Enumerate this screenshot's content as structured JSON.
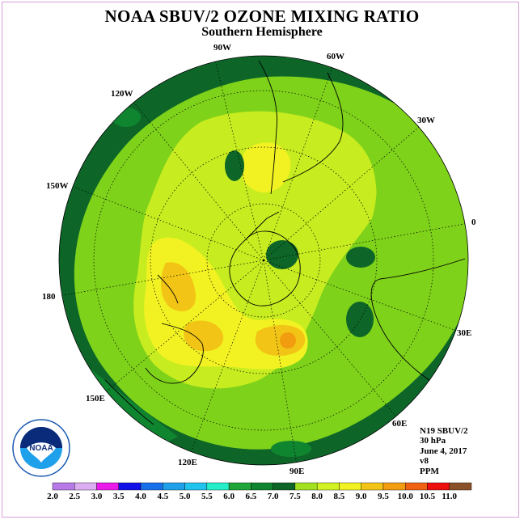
{
  "title": "NOAA SBUV/2 OZONE MIXING RATIO",
  "subtitle": "Southern Hemisphere",
  "longitude_labels": [
    "90W",
    "60W",
    "30W",
    "0",
    "30E",
    "60E",
    "90E",
    "120E",
    "150E",
    "180",
    "150W",
    "120W"
  ],
  "info": {
    "satellite": "N19 SBUV/2",
    "level": "30 hPa",
    "date": "June 4, 2017",
    "version": "v8",
    "units": "PPM"
  },
  "logo_text": "NOAA",
  "colorbar": {
    "labels": [
      "2.0",
      "2.5",
      "3.0",
      "3.5",
      "4.0",
      "4.5",
      "5.0",
      "5.5",
      "6.0",
      "6.5",
      "7.0",
      "7.5",
      "8.0",
      "8.5",
      "9.0",
      "9.5",
      "10.0",
      "10.5",
      "11.0"
    ],
    "colors": [
      "#b77ae8",
      "#dcadf0",
      "#ea1aea",
      "#1010e8",
      "#1870ea",
      "#1fa0ea",
      "#20c3ee",
      "#26eec8",
      "#1fa538",
      "#108530",
      "#0d6628",
      "#a2e020",
      "#d2f222",
      "#f2f222",
      "#f2c416",
      "#f29c0f",
      "#f06212",
      "#ee0e0e",
      "#8a5028"
    ]
  },
  "map_colors": {
    "band_6_5": "#108530",
    "band_7_0": "#0d6628",
    "band_7_5": "#7ed21a",
    "band_8_0": "#c7ec1f",
    "band_8_5": "#f2f222",
    "band_9_0": "#f2c416",
    "band_9_5": "#f29c0f"
  }
}
